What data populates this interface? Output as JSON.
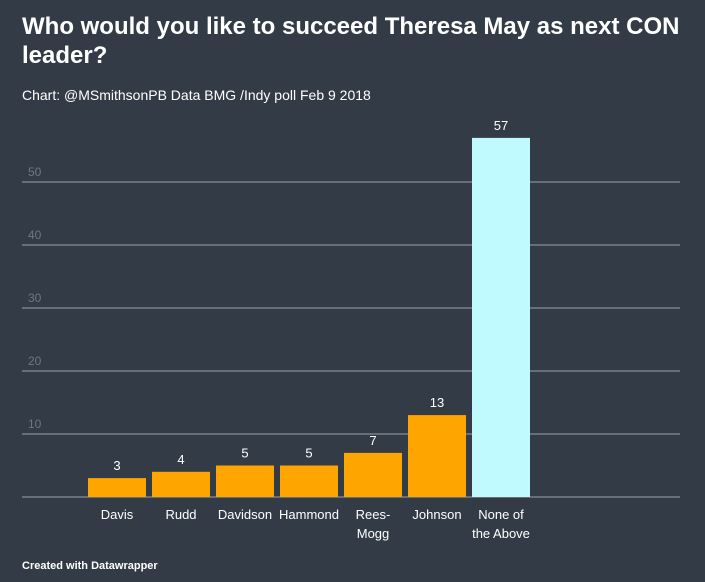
{
  "header": {
    "title": "Who would you like to succeed Theresa May as next CON leader?",
    "subtitle": "Chart: @MSmithsonPB Data BMG /Indy poll Feb 9 2018"
  },
  "footer": {
    "credit": "Created with Datawrapper"
  },
  "colors": {
    "background": "#333c46",
    "bar_default": "#ffa500",
    "bar_highlight": "#c0faff"
  },
  "chart_data": {
    "type": "bar",
    "title": "Who would you like to succeed Theresa May as next CON leader?",
    "subtitle": "Chart: @MSmithsonPB Data BMG /Indy poll Feb 9 2018",
    "categories": [
      "Davis",
      "Rudd",
      "Davidson",
      "Hammond",
      "Rees-Mogg",
      "Johnson",
      "None of the Above"
    ],
    "category_lines": [
      [
        "Davis"
      ],
      [
        "Rudd"
      ],
      [
        "Davidson"
      ],
      [
        "Hammond"
      ],
      [
        "Rees-",
        "Mogg"
      ],
      [
        "Johnson"
      ],
      [
        "None of",
        "the Above"
      ]
    ],
    "values": [
      3,
      4,
      5,
      5,
      7,
      13,
      57
    ],
    "value_labels": [
      "3",
      "4",
      "5",
      "5",
      "7",
      "13",
      "57"
    ],
    "highlight_index": 6,
    "yticks": [
      10,
      20,
      30,
      40,
      50
    ],
    "ytick_labels": [
      "10",
      "20",
      "30",
      "40",
      "50"
    ],
    "ylim": [
      0,
      60
    ],
    "grid": true,
    "xlabel": "",
    "ylabel": ""
  }
}
